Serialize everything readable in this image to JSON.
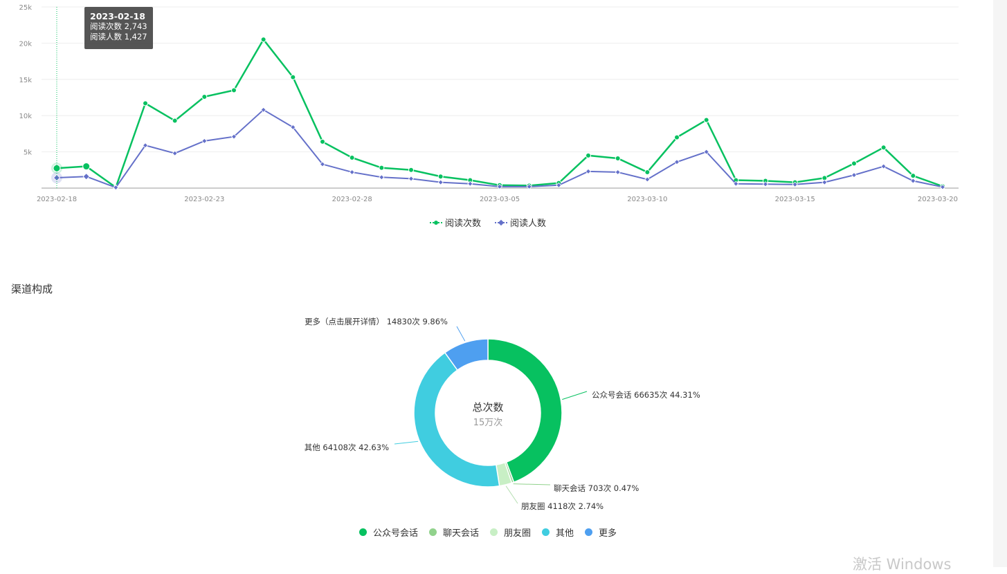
{
  "chart_data": [
    {
      "type": "line",
      "x": [
        "2023-02-18",
        "2023-02-19",
        "2023-02-20",
        "2023-02-21",
        "2023-02-22",
        "2023-02-23",
        "2023-02-24",
        "2023-02-25",
        "2023-02-26",
        "2023-02-27",
        "2023-02-28",
        "2023-03-01",
        "2023-03-02",
        "2023-03-03",
        "2023-03-04",
        "2023-03-05",
        "2023-03-06",
        "2023-03-07",
        "2023-03-08",
        "2023-03-09",
        "2023-03-10",
        "2023-03-11",
        "2023-03-12",
        "2023-03-13",
        "2023-03-14",
        "2023-03-15",
        "2023-03-16",
        "2023-03-17",
        "2023-03-18",
        "2023-03-19",
        "2023-03-20"
      ],
      "x_tick_labels": [
        "2023-02-18",
        "2023-02-23",
        "2023-02-28",
        "2023-03-05",
        "2023-03-10",
        "2023-03-15",
        "2023-03-20"
      ],
      "y_tick_labels": [
        "5k",
        "10k",
        "15k",
        "20k",
        "25k"
      ],
      "ylim": [
        0,
        25000
      ],
      "grid": true,
      "legend_position": "bottom",
      "series": [
        {
          "name": "阅读次数",
          "color": "#07c160",
          "marker": "circle",
          "values": [
            2743,
            3000,
            100,
            11700,
            9300,
            12600,
            13500,
            20500,
            15300,
            6400,
            4200,
            2800,
            2500,
            1600,
            1100,
            400,
            350,
            700,
            4500,
            4100,
            2200,
            7000,
            9400,
            1100,
            1000,
            800,
            1400,
            3400,
            5600,
            1700,
            250
          ]
        },
        {
          "name": "阅读人数",
          "color": "#6470c9",
          "marker": "diamond",
          "values": [
            1427,
            1600,
            80,
            5900,
            4800,
            6500,
            7100,
            10800,
            8400,
            3300,
            2200,
            1500,
            1300,
            800,
            600,
            200,
            200,
            400,
            2300,
            2200,
            1200,
            3600,
            5000,
            600,
            550,
            500,
            800,
            1800,
            3000,
            1000,
            150
          ]
        }
      ],
      "tooltip": {
        "date": "2023-02-18",
        "line1": "阅读次数 2,743",
        "line2": "阅读人数 1,427"
      }
    },
    {
      "type": "pie",
      "title": "渠道构成",
      "center_title": "总次数",
      "center_subtitle": "15万次",
      "legend_position": "bottom",
      "slices": [
        {
          "name": "公众号会话",
          "value": 66635,
          "percent": 44.31,
          "color": "#07c160",
          "label": "公众号会话 66635次 44.31%"
        },
        {
          "name": "聊天会话",
          "value": 703,
          "percent": 0.47,
          "color": "#91d28c",
          "label": "聊天会话 703次 0.47%"
        },
        {
          "name": "朋友圈",
          "value": 4118,
          "percent": 2.74,
          "color": "#c8efc5",
          "label": "朋友圈 4118次 2.74%"
        },
        {
          "name": "其他",
          "value": 64108,
          "percent": 42.63,
          "color": "#40cde0",
          "label": "其他 64108次 42.63%"
        },
        {
          "name": "更多",
          "value": 14830,
          "percent": 9.86,
          "color": "#4e9ff0",
          "label": "更多（点击展开详情） 14830次 9.86%"
        }
      ]
    }
  ],
  "watermark": "激活 Windows"
}
